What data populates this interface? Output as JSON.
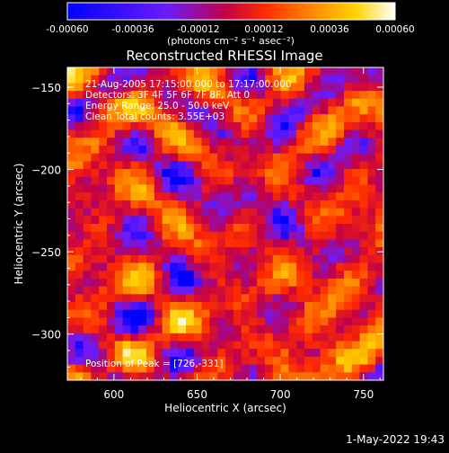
{
  "colorbar": {
    "tick_labels": [
      "-0.00060",
      "-0.00036",
      "-0.00012",
      "0.00012",
      "0.00036",
      "0.00060"
    ],
    "units": "(photons cm⁻² s⁻¹ asec⁻²)",
    "range": [
      -0.0006,
      0.0006
    ],
    "colormap": [
      "#0000ff",
      "#6a1cff",
      "#c0004a",
      "#ff2a00",
      "#ff8a00",
      "#ffd400",
      "#ffffff"
    ]
  },
  "chart_data": {
    "type": "heatmap",
    "title": "Reconstructed RHESSI Image",
    "xlabel": "Heliocentric X (arcsec)",
    "ylabel": "Heliocentric Y (arcsec)",
    "xlim": [
      572,
      762
    ],
    "ylim": [
      -328,
      -138
    ],
    "x_ticks": [
      600,
      650,
      700,
      750
    ],
    "y_ticks": [
      -150,
      -200,
      -250,
      -300
    ],
    "x_tick_labels": [
      "600",
      "650",
      "700",
      "750"
    ],
    "y_tick_labels": [
      "−150",
      "−200",
      "−250",
      "−300"
    ],
    "grid": false,
    "annotations": [
      "21-Aug-2005 17:15:00.000 to 17:17:00.000",
      "Detectors: 3F 4F 5F 6F 7F 8F, Att 0",
      "Energy Range: 25.0 - 50.0 keV",
      "Clean     Total counts: 3.55E+03"
    ],
    "peak_label": "Position of Peak = [726,-331]",
    "peak_position": [
      726,
      -331
    ]
  },
  "timestamp": "1-May-2022 19:43"
}
